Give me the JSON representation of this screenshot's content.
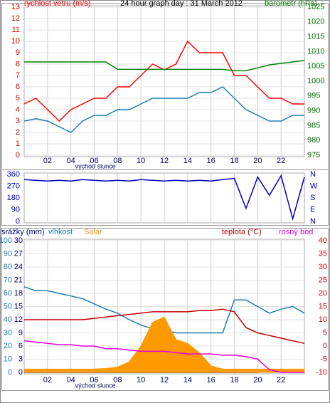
{
  "chart_data": [
    {
      "type": "line",
      "title": "24 hour graph day : 31 March 2012",
      "x": [
        0,
        1,
        2,
        3,
        4,
        5,
        6,
        7,
        8,
        9,
        10,
        11,
        12,
        13,
        14,
        15,
        16,
        17,
        18,
        19,
        20,
        21,
        22,
        23,
        24
      ],
      "xlim": [
        0,
        24
      ],
      "xticks": [
        {
          "value": 2,
          "label": "02"
        },
        {
          "value": 4,
          "label": "04"
        },
        {
          "value": 6,
          "label": "06"
        },
        {
          "value": 8,
          "label": "08"
        },
        10,
        12,
        14,
        16,
        18,
        20,
        22
      ],
      "annotation": {
        "text": "východ slunce",
        "x": 6.1
      },
      "ylim": [
        0,
        13
      ],
      "yticks": [
        0,
        1,
        2,
        3,
        4,
        5,
        6,
        7,
        8,
        9,
        10,
        11,
        12,
        13
      ],
      "ycolor": "#e00000",
      "y2lim": [
        975,
        1025
      ],
      "y2ticks": [
        975,
        980,
        985,
        990,
        995,
        1000,
        1005,
        1010,
        1015,
        1020,
        1025
      ],
      "y2color": "#007000",
      "grid": true,
      "series": [
        {
          "name": "rychlost vetru (m/s)",
          "color": "#ff0000",
          "axis": "y",
          "values": [
            4.5,
            5,
            4,
            3,
            4,
            4.5,
            5,
            5,
            6,
            6,
            7,
            8,
            7.5,
            8,
            10,
            9,
            9,
            9,
            7,
            7,
            6,
            5,
            5,
            4.5,
            4.5
          ]
        },
        {
          "color": "#1a7fb0",
          "axis": "y",
          "values": [
            3,
            3.2,
            3,
            2.5,
            2,
            3,
            3.5,
            3.5,
            4,
            4,
            4.5,
            5,
            5,
            5,
            5,
            5.5,
            5.5,
            6,
            5,
            4,
            3.5,
            3,
            3,
            3.5,
            3.5
          ]
        },
        {
          "name": "barometr (hPa)",
          "color": "#008000",
          "axis": "y2",
          "values": [
            1006.5,
            1006.5,
            1006.5,
            1006.5,
            1006.5,
            1006.5,
            1006.5,
            1006.5,
            1004,
            1004,
            1004,
            1004,
            1004,
            1004,
            1004,
            1004,
            1004,
            1004,
            1003.5,
            1003.5,
            1004.5,
            1005.5,
            1006,
            1006.5,
            1007
          ]
        }
      ]
    },
    {
      "type": "line",
      "x": [
        0,
        1,
        2,
        3,
        4,
        5,
        6,
        7,
        8,
        9,
        10,
        11,
        12,
        13,
        14,
        15,
        16,
        17,
        18,
        19,
        20,
        21,
        22,
        23,
        24
      ],
      "xlim": [
        0,
        24
      ],
      "xticks": [
        {
          "value": 2,
          "label": "02"
        },
        {
          "value": 4,
          "label": "04"
        },
        {
          "value": 6,
          "label": "06"
        },
        {
          "value": 8,
          "label": "08"
        },
        10,
        12,
        14,
        16,
        18,
        20,
        22
      ],
      "ylim": [
        0,
        360
      ],
      "yticks": [
        0,
        90,
        180,
        270,
        360
      ],
      "ycolor": "#0000c0",
      "y2lim": [
        0,
        360
      ],
      "y2ticks": [
        {
          "value": 360,
          "label": "N"
        },
        {
          "value": 270,
          "label": "W"
        },
        {
          "value": 180,
          "label": "S"
        },
        {
          "value": 90,
          "label": "E"
        },
        {
          "value": 0,
          "label": "N"
        }
      ],
      "y2color": "#0000c0",
      "grid": false,
      "series": [
        {
          "color": "#0000c0",
          "axis": "y",
          "values": [
            320,
            315,
            310,
            315,
            310,
            320,
            315,
            310,
            315,
            310,
            320,
            315,
            310,
            315,
            310,
            315,
            310,
            320,
            330,
            100,
            340,
            200,
            350,
            20,
            340
          ]
        }
      ]
    },
    {
      "type": "line",
      "x": [
        0,
        1,
        2,
        3,
        4,
        5,
        6,
        7,
        8,
        9,
        10,
        11,
        12,
        13,
        14,
        15,
        16,
        17,
        18,
        19,
        20,
        21,
        22,
        23,
        24
      ],
      "xlim": [
        0,
        24
      ],
      "xticks": [
        {
          "value": 2,
          "label": "02"
        },
        {
          "value": 4,
          "label": "04"
        },
        {
          "value": 6,
          "label": "06"
        },
        {
          "value": 8,
          "label": "08"
        },
        10,
        12,
        14,
        16,
        18,
        20,
        22
      ],
      "annotation": {
        "text": "východ slunce",
        "x": 6.1
      },
      "ylim": [
        0,
        30
      ],
      "yticks": [
        0,
        3,
        6,
        9,
        12,
        15,
        18,
        21,
        24,
        27,
        30
      ],
      "ycolor": "#000060",
      "y3lim": [
        0,
        100
      ],
      "y3ticks": [
        0,
        10,
        20,
        30,
        40,
        50,
        60,
        70,
        80,
        90,
        100
      ],
      "y3color": "#1a7fb0",
      "y2lim": [
        -10,
        40
      ],
      "y2ticks": [
        -10,
        -5,
        0,
        5,
        10,
        15,
        20,
        25,
        30,
        35,
        40
      ],
      "y2color": "#e00000",
      "grid": true,
      "series": [
        {
          "name": "srážky (mm)",
          "color": "#000080",
          "axis": "y",
          "values": [
            0,
            0,
            0,
            0,
            0,
            0,
            0,
            0,
            0,
            0,
            0,
            0,
            0,
            0,
            0,
            0,
            0,
            0,
            0,
            0,
            0,
            0.2,
            0.7,
            0.7,
            0.7
          ]
        },
        {
          "name": "vlhkost",
          "color": "#1a7fb0",
          "axis": "y3",
          "values": [
            65,
            62,
            62,
            60,
            58,
            56,
            52,
            48,
            45,
            40,
            36,
            33,
            32,
            30,
            30,
            30,
            30,
            30,
            55,
            55,
            50,
            45,
            48,
            50,
            45
          ]
        },
        {
          "name": "Solar",
          "color": "#ff9900",
          "axis": "y3",
          "kind": "area",
          "values": [
            2.5,
            2.5,
            2.5,
            2.5,
            2.5,
            2.5,
            2.5,
            3,
            4,
            8,
            20,
            38,
            42,
            25,
            22,
            15,
            5,
            2.5,
            2.5,
            2.5,
            2.5,
            2.5,
            2.5,
            2.5,
            2.5
          ]
        },
        {
          "name": "teplota (°C)",
          "color": "#c00000",
          "axis": "y2",
          "values": [
            10,
            10,
            10,
            10,
            10,
            10,
            10.5,
            11,
            11.5,
            12,
            12.5,
            13,
            13,
            13,
            13,
            13.5,
            13.5,
            14,
            13,
            7,
            5,
            4,
            3,
            2,
            1
          ]
        },
        {
          "name": "rosný bod",
          "color": "#e000e0",
          "axis": "y2",
          "values": [
            2,
            1.5,
            1,
            0.5,
            0.5,
            0,
            0,
            -1,
            -1,
            -1.5,
            -2,
            -2,
            -2,
            -2.5,
            -3,
            -3,
            -3,
            -3.5,
            -3.5,
            -4,
            -5,
            -9,
            -10,
            -10,
            -10
          ]
        }
      ]
    }
  ]
}
